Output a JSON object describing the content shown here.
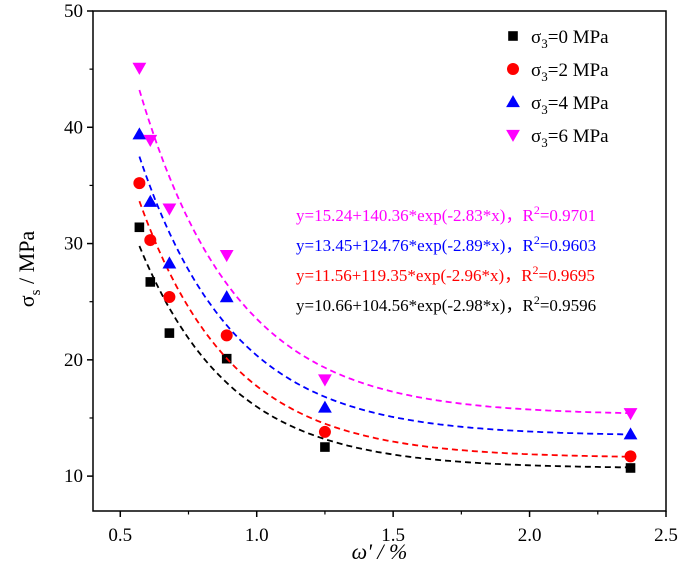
{
  "chart_data": {
    "type": "scatter",
    "title": "",
    "xlabel": {
      "main": "ω' / %"
    },
    "ylabel": {
      "main": "σ",
      "sub": "s",
      "rest": " / MPa"
    },
    "xlim": [
      0.4,
      2.5
    ],
    "ylim": [
      7,
      50
    ],
    "xticks": [
      0.5,
      1.0,
      1.5,
      2.0,
      2.5
    ],
    "xtick_labels": [
      "0.5",
      "1.0",
      "1.5",
      "2.0",
      "2.5"
    ],
    "yticks": [
      10,
      20,
      30,
      40,
      50
    ],
    "ytick_labels": [
      "10",
      "20",
      "30",
      "40",
      "50"
    ],
    "x_points": [
      0.57,
      0.61,
      0.68,
      0.89,
      1.25,
      2.37
    ],
    "legend_position": "top-right",
    "series": [
      {
        "name": "σ3=0 MPa",
        "legend": {
          "pre": "σ",
          "sub": "3",
          "post": "=0 MPa"
        },
        "color": "#000000",
        "marker": "square",
        "values": [
          31.4,
          26.7,
          22.3,
          20.1,
          12.5,
          10.7
        ],
        "fit": {
          "a": 10.66,
          "b": 104.56,
          "c": -2.98
        },
        "equation": {
          "text": "y=10.66+104.56*exp(-2.98*x)，",
          "r2_pre": "R",
          "r2_sup": "2",
          "r2_post": "=0.9596"
        }
      },
      {
        "name": "σ3=2 MPa",
        "legend": {
          "pre": "σ",
          "sub": "3",
          "post": "=2 MPa"
        },
        "color": "#ff0000",
        "marker": "circle",
        "values": [
          35.2,
          30.3,
          25.4,
          22.1,
          13.8,
          11.7
        ],
        "fit": {
          "a": 11.56,
          "b": 119.35,
          "c": -2.96
        },
        "equation": {
          "text": "y=11.56+119.35*exp(-2.96*x)，",
          "r2_pre": "R",
          "r2_sup": "2",
          "r2_post": "=0.9695"
        }
      },
      {
        "name": "σ3=4 MPa",
        "legend": {
          "pre": "σ",
          "sub": "3",
          "post": "=4 MPa"
        },
        "color": "#0000ff",
        "marker": "triangle-up",
        "values": [
          39.4,
          33.6,
          28.3,
          25.4,
          15.9,
          13.6
        ],
        "fit": {
          "a": 13.45,
          "b": 124.76,
          "c": -2.89
        },
        "equation": {
          "text": "y=13.45+124.76*exp(-2.89*x)，",
          "r2_pre": "R",
          "r2_sup": "2",
          "r2_post": "=0.9603"
        }
      },
      {
        "name": "σ3=6 MPa",
        "legend": {
          "pre": "σ",
          "sub": "3",
          "post": "=6 MPa"
        },
        "color": "#ff00ff",
        "marker": "triangle-down",
        "values": [
          45.1,
          38.9,
          33.0,
          29.0,
          18.3,
          15.4
        ],
        "fit": {
          "a": 15.24,
          "b": 140.36,
          "c": -2.83
        },
        "equation": {
          "text": "y=15.24+140.36*exp(-2.83*x)，",
          "r2_pre": "R",
          "r2_sup": "2",
          "r2_post": "=0.9701"
        }
      }
    ]
  }
}
